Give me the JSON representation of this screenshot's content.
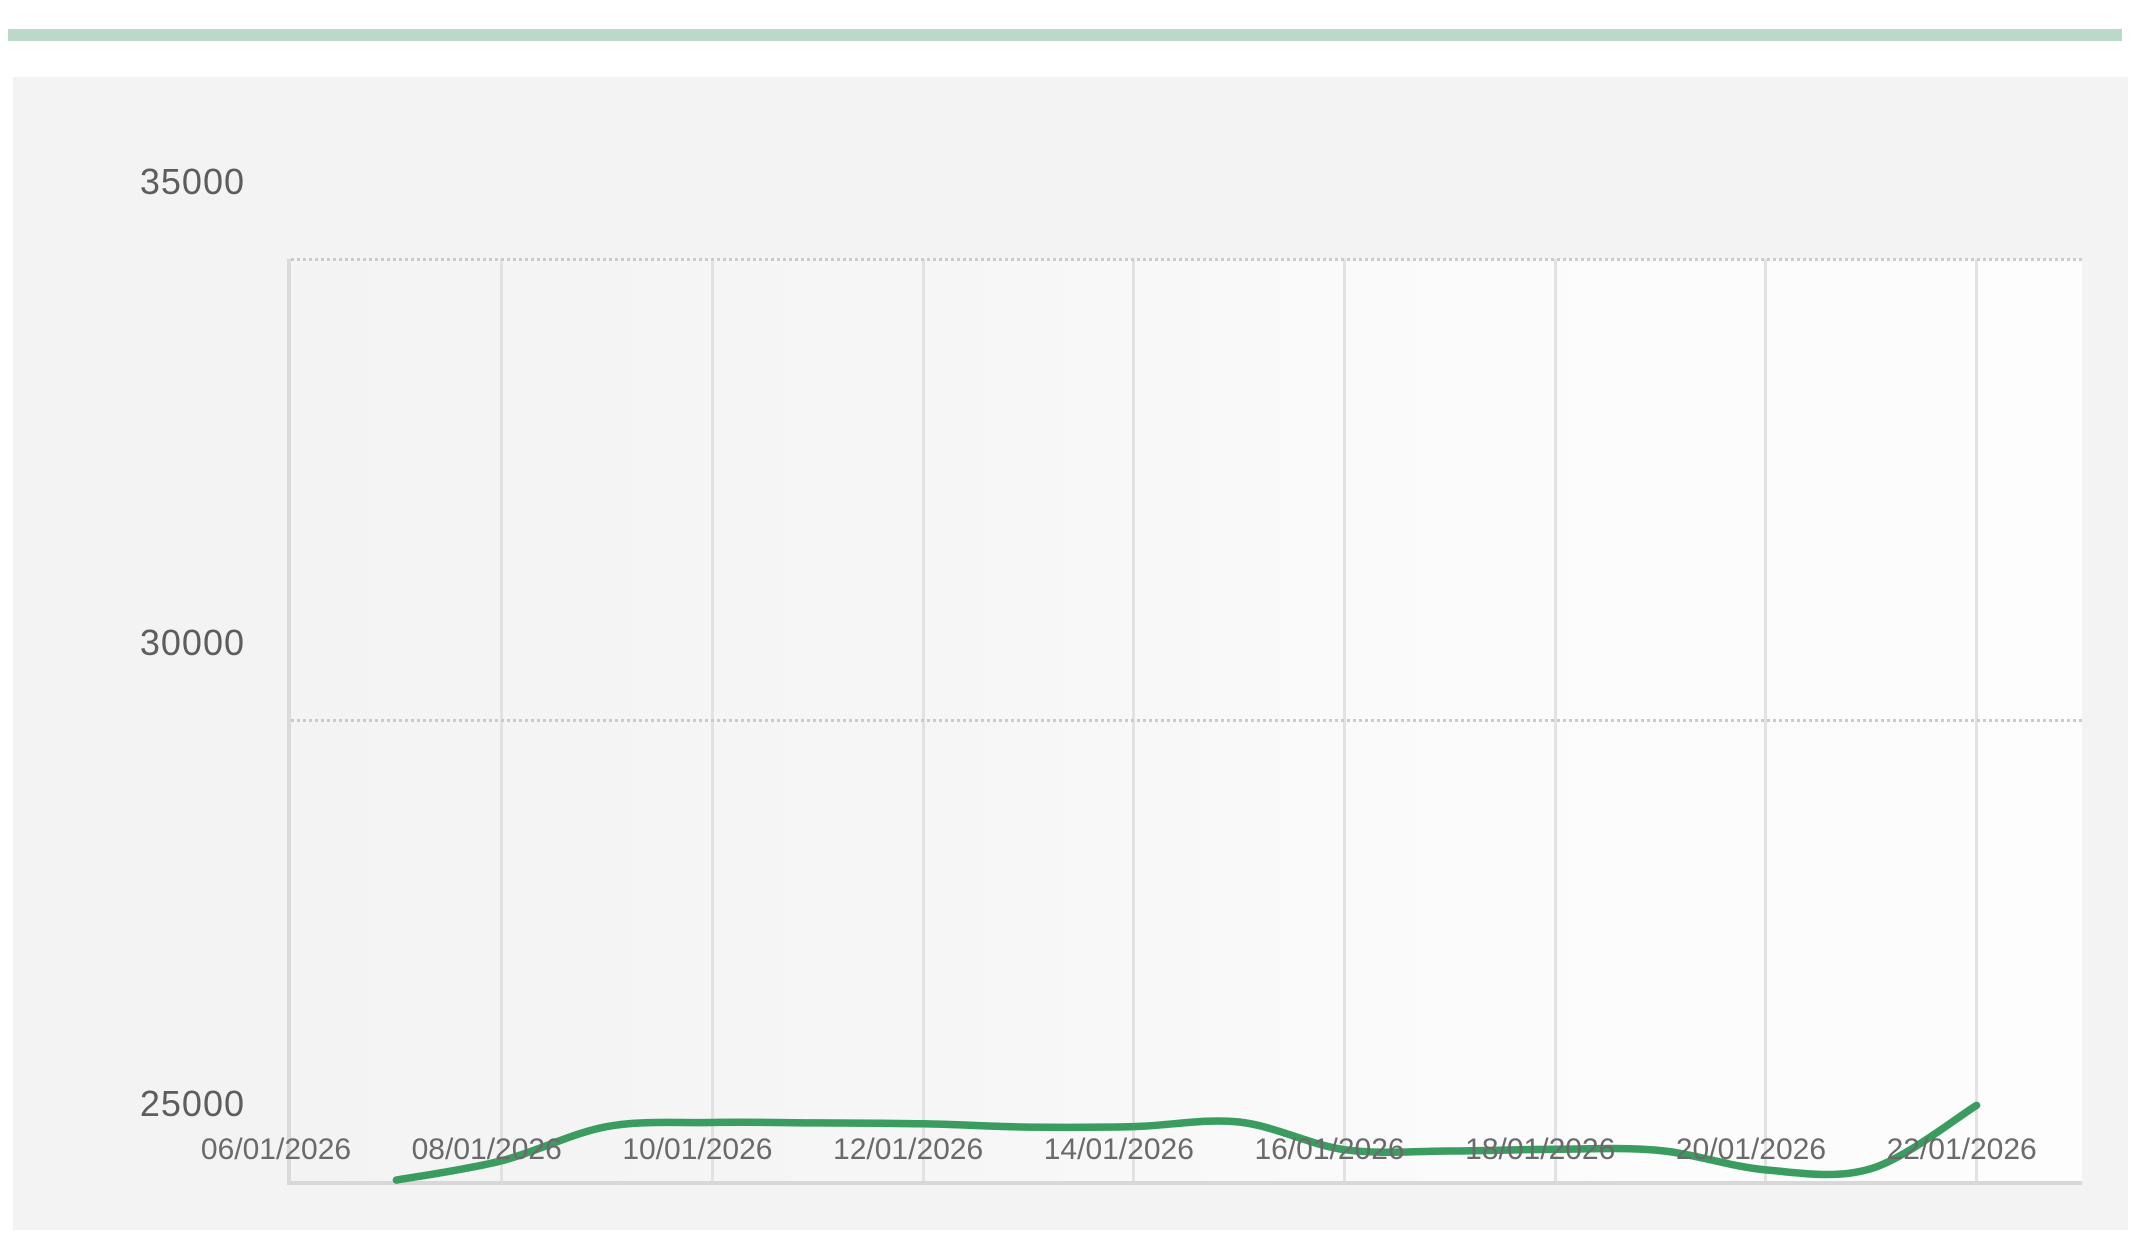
{
  "page": {
    "background": "#ffffff",
    "accent_bar_color": "#bcd8c8",
    "panel_background": "#f3f3f3",
    "grid_vertical_color": "#e2e2e2",
    "grid_dotted_color": "#cbcbcb",
    "axis_line_color": "#d8d8d8",
    "y_label_color": "#5d5d5d",
    "x_label_color": "#6a6a6a"
  },
  "chart_data": {
    "type": "line",
    "title": "",
    "legend": "none",
    "grid": {
      "horizontal": "dotted lines at 30000 and 35000, solid baseline at 25000",
      "vertical": "solid line at every x tick"
    },
    "x_axis": {
      "tick_labels": [
        "06/01/2026",
        "08/01/2026",
        "10/01/2026",
        "12/01/2026",
        "14/01/2026",
        "16/01/2026",
        "18/01/2026",
        "20/01/2026",
        "22/01/2026"
      ],
      "tick_interval_days": 2
    },
    "y_axis": {
      "tick_labels": [
        "35000",
        "30000",
        "25000"
      ],
      "min": 25000,
      "max": 35000
    },
    "series": [
      {
        "name": "",
        "color": "#3a9c5f",
        "dates": [
          "07/01/2026",
          "08/01/2026",
          "09/01/2026",
          "10/01/2026",
          "11/01/2026",
          "12/01/2026",
          "13/01/2026",
          "14/01/2026",
          "15/01/2026",
          "16/01/2026",
          "17/01/2026",
          "18/01/2026",
          "19/01/2026",
          "20/01/2026",
          "21/01/2026",
          "22/01/2026"
        ],
        "values": [
          25010,
          25220,
          25590,
          25635,
          25630,
          25620,
          25585,
          25590,
          25640,
          25340,
          25325,
          25345,
          25330,
          25120,
          25135,
          25820
        ]
      }
    ]
  }
}
